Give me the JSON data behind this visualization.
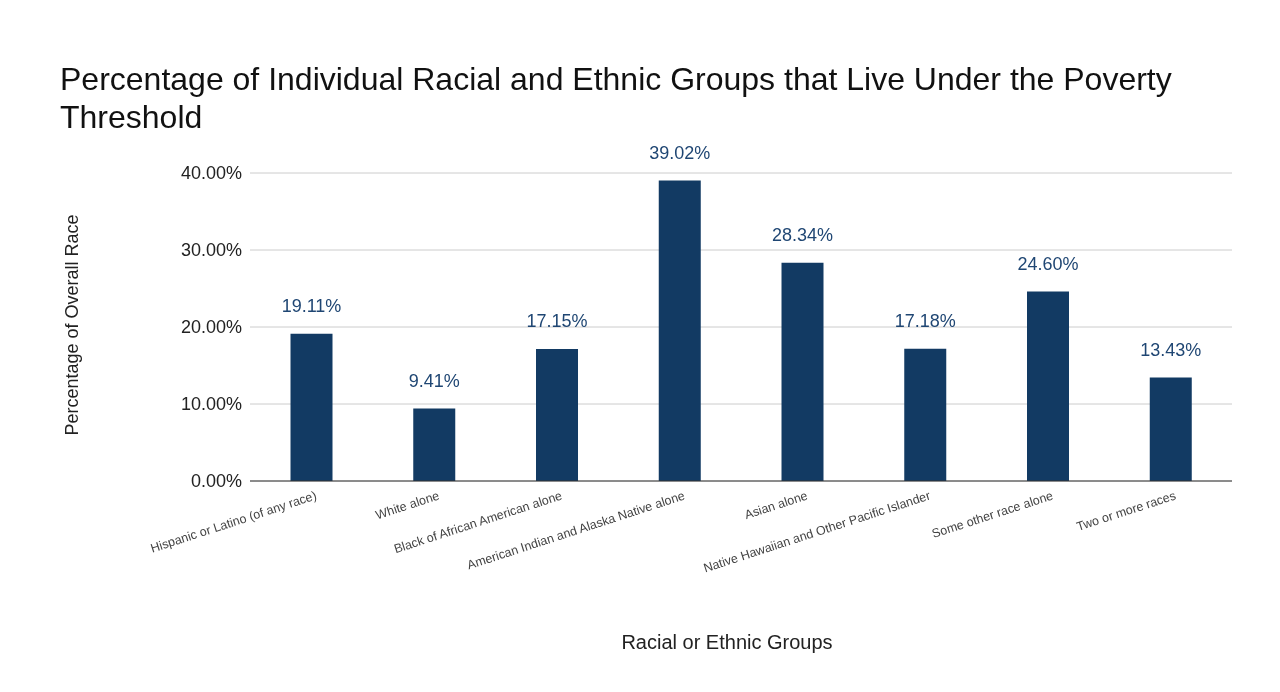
{
  "chart_data": {
    "type": "bar",
    "title": "Percentage of Individual Racial and Ethnic Groups that Live Under the Poverty Threshold",
    "xlabel": "Racial or Ethnic Groups",
    "ylabel": "Percentage of Overall Race",
    "categories": [
      "Hispanic or Latino (of any race)",
      "White alone",
      "Black of African American alone",
      "American Indian and Alaska Native alone",
      "Asian alone",
      "Native Hawaiian and Other Pacific Islander",
      "Some other race alone",
      "Two or more races"
    ],
    "values": [
      19.11,
      9.41,
      17.15,
      39.02,
      28.34,
      17.18,
      24.6,
      13.43
    ],
    "value_labels": [
      "19.11%",
      "9.41%",
      "17.15%",
      "39.02%",
      "28.34%",
      "17.18%",
      "24.60%",
      "13.43%"
    ],
    "color": "#123a63",
    "ylim": [
      0,
      40
    ],
    "yticks": [
      {
        "value": 0,
        "label": "0.00%"
      },
      {
        "value": 10,
        "label": "10.00%"
      },
      {
        "value": 20,
        "label": "20.00%"
      },
      {
        "value": 30,
        "label": "30.00%"
      },
      {
        "value": 40,
        "label": "40.00%"
      }
    ],
    "grid": "y",
    "legend": false
  }
}
